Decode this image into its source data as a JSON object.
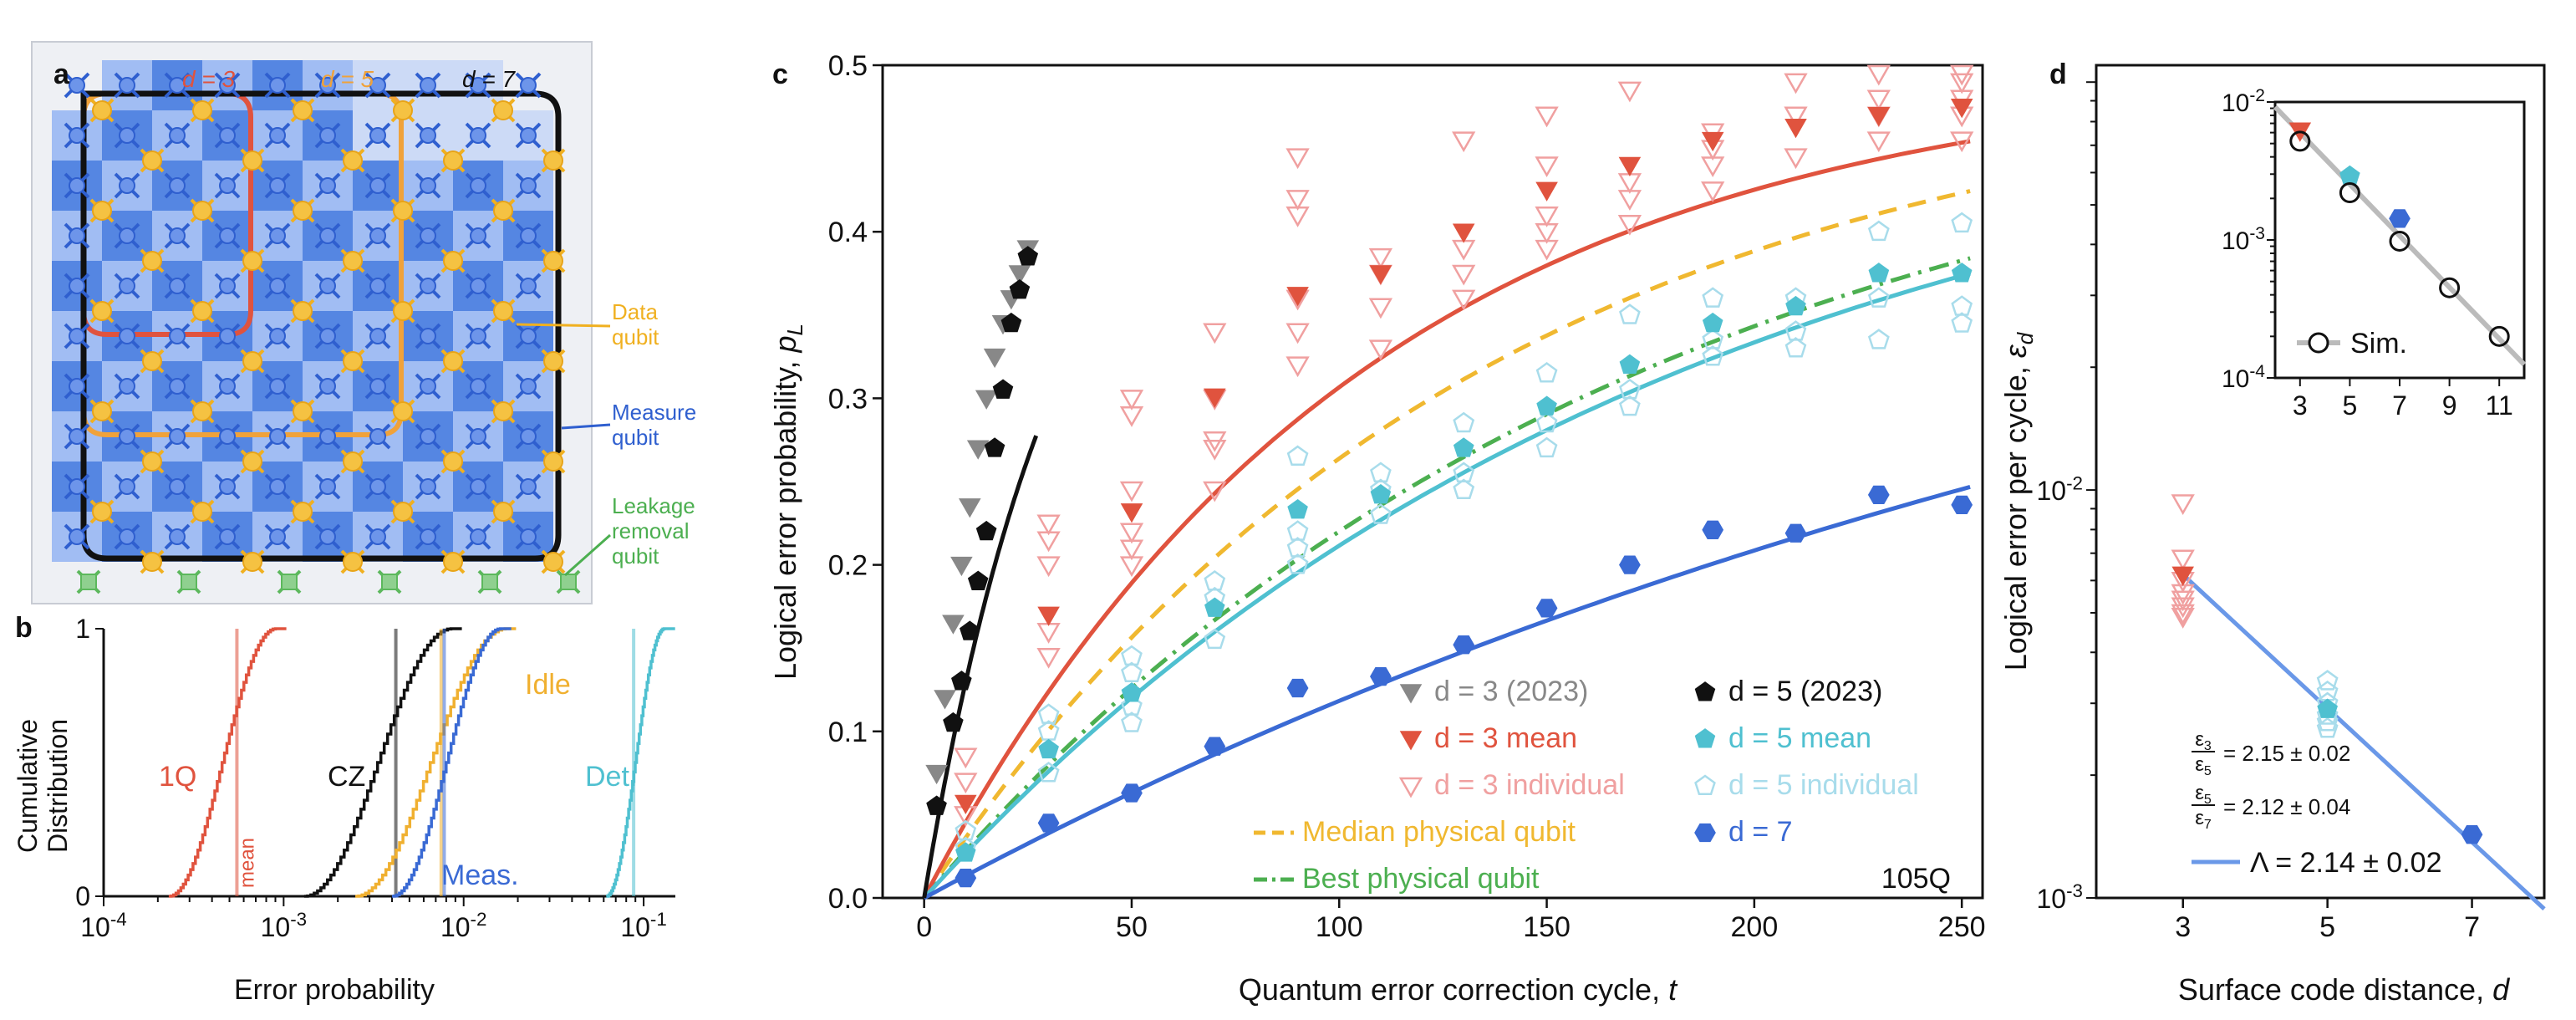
{
  "panel_labels": {
    "a": "a",
    "b": "b",
    "c": "c",
    "d": "d"
  },
  "panel_a": {
    "distance_labels": [
      {
        "text": "d = 3",
        "color": "#e0533e"
      },
      {
        "text": "d = 5",
        "color": "#f0a23a"
      },
      {
        "text": "d = 7",
        "color": "#111111"
      }
    ],
    "legend": [
      {
        "line1": "Data",
        "line2": "qubit",
        "line3": "",
        "color": "#f0b020"
      },
      {
        "line1": "Measure",
        "line2": "qubit",
        "line3": "",
        "color": "#2f5fcf"
      },
      {
        "line1": "Leakage",
        "line2": "removal",
        "line3": "qubit",
        "color": "#4caf50"
      }
    ],
    "colors": {
      "data": "#f5c242",
      "measure": "#2f5fcf",
      "leakage": "#5cb85c"
    }
  },
  "chart_data": [
    {
      "panel": "b",
      "type": "line",
      "xlabel": "Error probability",
      "ylabel_line1": "Cumulative",
      "ylabel_line2": "Distribution",
      "x_scale": "log",
      "xlim": [
        0.0001,
        0.15
      ],
      "ylim": [
        0,
        1
      ],
      "x_ticks": [
        "10^-4",
        "10^-3",
        "10^-2",
        "10^-1"
      ],
      "y_ticks": [
        "0",
        "1"
      ],
      "series": [
        {
          "name": "1Q",
          "color": "#e0533e",
          "from": 0.00023,
          "to": 0.0009,
          "mean": 0.00055,
          "label_text": "1Q"
        },
        {
          "name": "CZ",
          "color": "#111111",
          "from": 0.0013,
          "to": 0.0085,
          "mean": 0.0042,
          "label_text": "CZ"
        },
        {
          "name": "Idle",
          "color": "#f0b030",
          "from": 0.0025,
          "to": 0.017,
          "mean": 0.0075,
          "label_text": "Idle"
        },
        {
          "name": "Meas.",
          "color": "#3a6ad4",
          "from": 0.004,
          "to": 0.016,
          "mean": 0.0078,
          "label_text": "Meas."
        },
        {
          "name": "Det.",
          "color": "#4fc0d0",
          "from": 0.062,
          "to": 0.13,
          "mean": 0.088,
          "label_text": "Det."
        }
      ],
      "mean_label": "mean"
    },
    {
      "panel": "c",
      "type": "scatter",
      "xlabel_text": "Quantum error correction cycle, ",
      "xlabel_var": "t",
      "ylabel_text": "Logical error probability, ",
      "ylabel_var": "p",
      "ylabel_sub": "L",
      "xlim": [
        -10,
        255
      ],
      "ylim": [
        0,
        0.5
      ],
      "x_ticks": [
        0,
        50,
        100,
        150,
        200,
        250
      ],
      "y_ticks": [
        0.0,
        0.1,
        0.2,
        0.3,
        0.4,
        0.5
      ],
      "annotation": "105Q",
      "series": [
        {
          "name": "d = 3 (2023)",
          "color": "#888888",
          "marker": "tri-down",
          "x": [
            3,
            5,
            7,
            9,
            11,
            13,
            15,
            17,
            19,
            21,
            23,
            25
          ],
          "y": [
            0.075,
            0.12,
            0.165,
            0.2,
            0.235,
            0.27,
            0.3,
            0.325,
            0.345,
            0.36,
            0.375,
            0.39
          ]
        },
        {
          "name": "d = 5 (2023)",
          "color": "#111111",
          "marker": "pentagon",
          "x": [
            3,
            7,
            9,
            11,
            13,
            15,
            17,
            19,
            21,
            23,
            25
          ],
          "y": [
            0.055,
            0.105,
            0.13,
            0.16,
            0.19,
            0.22,
            0.27,
            0.305,
            0.345,
            0.365,
            0.385
          ]
        },
        {
          "name": "d = 3 mean",
          "color": "#e0533e",
          "marker": "tri-down",
          "x": [
            10,
            30,
            50,
            70,
            90,
            110,
            130,
            150,
            170,
            190,
            210,
            230,
            250
          ],
          "y": [
            0.057,
            0.17,
            0.232,
            0.301,
            0.362,
            0.375,
            0.4,
            0.425,
            0.44,
            0.455,
            0.463,
            0.47,
            0.475
          ]
        },
        {
          "name": "d = 3 individual",
          "color": "#f0a0a0",
          "marker": "tri-down-open",
          "x": [
            10,
            10,
            10,
            30,
            30,
            30,
            30,
            30,
            50,
            50,
            50,
            50,
            50,
            50,
            70,
            70,
            70,
            70,
            70,
            90,
            90,
            90,
            90,
            90,
            90,
            110,
            110,
            110,
            110,
            130,
            130,
            130,
            130,
            150,
            150,
            150,
            150,
            150,
            170,
            170,
            170,
            170,
            190,
            190,
            190,
            190,
            210,
            210,
            210,
            230,
            230,
            230,
            230,
            250,
            250,
            250,
            250,
            250
          ],
          "y": [
            0.05,
            0.07,
            0.085,
            0.145,
            0.16,
            0.2,
            0.215,
            0.225,
            0.2,
            0.21,
            0.22,
            0.245,
            0.29,
            0.3,
            0.245,
            0.27,
            0.275,
            0.3,
            0.34,
            0.32,
            0.34,
            0.36,
            0.41,
            0.42,
            0.445,
            0.33,
            0.355,
            0.375,
            0.385,
            0.36,
            0.375,
            0.39,
            0.455,
            0.39,
            0.4,
            0.41,
            0.44,
            0.47,
            0.405,
            0.42,
            0.43,
            0.485,
            0.425,
            0.44,
            0.45,
            0.46,
            0.445,
            0.47,
            0.49,
            0.455,
            0.47,
            0.48,
            0.495,
            0.455,
            0.47,
            0.48,
            0.49,
            0.495
          ]
        },
        {
          "name": "d = 5 mean",
          "color": "#4fc0d0",
          "marker": "pentagon",
          "x": [
            10,
            30,
            50,
            70,
            90,
            110,
            130,
            150,
            170,
            190,
            210,
            230,
            250
          ],
          "y": [
            0.027,
            0.089,
            0.123,
            0.174,
            0.233,
            0.242,
            0.27,
            0.295,
            0.32,
            0.345,
            0.355,
            0.375,
            0.375
          ]
        },
        {
          "name": "d = 5 individual",
          "color": "#a8dceb",
          "marker": "pentagon-open",
          "x": [
            10,
            10,
            30,
            30,
            30,
            50,
            50,
            50,
            50,
            70,
            70,
            70,
            90,
            90,
            90,
            90,
            110,
            110,
            110,
            130,
            130,
            130,
            150,
            150,
            150,
            170,
            170,
            170,
            190,
            190,
            190,
            210,
            210,
            210,
            230,
            230,
            230,
            250,
            250,
            250
          ],
          "y": [
            0.03,
            0.04,
            0.075,
            0.1,
            0.11,
            0.105,
            0.115,
            0.135,
            0.145,
            0.155,
            0.18,
            0.19,
            0.2,
            0.21,
            0.22,
            0.265,
            0.23,
            0.245,
            0.255,
            0.245,
            0.255,
            0.285,
            0.27,
            0.285,
            0.315,
            0.295,
            0.305,
            0.35,
            0.325,
            0.335,
            0.36,
            0.33,
            0.34,
            0.36,
            0.335,
            0.36,
            0.4,
            0.345,
            0.355,
            0.405
          ]
        },
        {
          "name": "d = 7",
          "color": "#3a6ad4",
          "marker": "hexagon",
          "x": [
            10,
            30,
            50,
            70,
            90,
            110,
            130,
            150,
            170,
            190,
            210,
            230,
            250
          ],
          "y": [
            0.012,
            0.045,
            0.063,
            0.091,
            0.126,
            0.133,
            0.152,
            0.174,
            0.2,
            0.221,
            0.219,
            0.242,
            0.236
          ]
        },
        {
          "name": "Median physical qubit",
          "color": "#f0b830",
          "marker": "dashed",
          "x": [],
          "y": []
        },
        {
          "name": "Best physical qubit",
          "color": "#4caf50",
          "marker": "dashdot",
          "x": [],
          "y": []
        }
      ],
      "legend": [
        {
          "label": "d = 3 (2023)",
          "color": "#888888"
        },
        {
          "label": "d = 5 (2023)",
          "color": "#111111"
        },
        {
          "label": "d = 3 mean",
          "color": "#e0533e"
        },
        {
          "label": "d = 5 mean",
          "color": "#4fc0d0"
        },
        {
          "label": "d = 3 individual",
          "color": "#f0a0a0"
        },
        {
          "label": "d = 5 individual",
          "color": "#a8dceb"
        },
        {
          "label": "Median physical qubit",
          "color": "#f0b830"
        },
        {
          "label": "Best physical qubit",
          "color": "#4caf50"
        },
        {
          "label": "d = 7",
          "color": "#3a6ad4"
        }
      ],
      "fits": {
        "d3": {
          "plateau": 0.5,
          "rate": 0.0095,
          "offset": 0.0
        },
        "median": {
          "plateau": 0.5,
          "rate": 0.0075,
          "offset": 0.0
        },
        "best": {
          "plateau": 0.5,
          "rate": 0.0058,
          "offset": 0.0
        },
        "d5": {
          "plateau": 0.5,
          "rate": 0.0055,
          "offset": 0.0
        },
        "d7": {
          "plateau": 0.5,
          "rate": 0.0027,
          "offset": 0.0
        },
        "d5_2023": {
          "plateau": 0.5,
          "rate": 0.03,
          "offset": 0.0
        }
      }
    },
    {
      "panel": "d",
      "type": "scatter",
      "xlabel_text": "Surface code distance, ",
      "xlabel_var": "d",
      "ylabel_text": "Logical error per cycle, ",
      "ylabel_var": "ε",
      "ylabel_sub": "d",
      "y_scale": "log",
      "xlim": [
        1.8,
        8.0
      ],
      "ylim": [
        0.001,
        0.11
      ],
      "x_ticks": [
        3,
        5,
        7
      ],
      "y_ticks": [
        "10^-3",
        "10^-2"
      ],
      "series": [
        {
          "name": "d = 3 mean",
          "color": "#e0533e",
          "marker": "tri-down",
          "x": [
            3
          ],
          "y": [
            0.0062
          ]
        },
        {
          "name": "d = 3 individual",
          "color": "#f0a0a0",
          "marker": "tri-down-open",
          "x": [
            3,
            3,
            3,
            3,
            3,
            3,
            3,
            3
          ],
          "y": [
            0.0093,
            0.0068,
            0.006,
            0.0056,
            0.0054,
            0.0052,
            0.005,
            0.0049
          ]
        },
        {
          "name": "d = 5 mean",
          "color": "#4fc0d0",
          "marker": "pentagon",
          "x": [
            5
          ],
          "y": [
            0.0029
          ]
        },
        {
          "name": "d = 5 individual",
          "color": "#a8dceb",
          "marker": "pentagon-open",
          "x": [
            5,
            5,
            5,
            5,
            5,
            5
          ],
          "y": [
            0.0034,
            0.0032,
            0.003,
            0.0028,
            0.0027,
            0.0026
          ]
        },
        {
          "name": "d = 7",
          "color": "#3a6ad4",
          "marker": "hexagon",
          "x": [
            7
          ],
          "y": [
            0.00143
          ]
        }
      ],
      "fit_line": {
        "color": "#6a98e8",
        "x": [
          3,
          8
        ],
        "y": [
          0.0062,
          0.00094
        ]
      },
      "ratios": [
        {
          "num": "ε",
          "num_sub": "3",
          "den": "ε",
          "den_sub": "5",
          "value": "= 2.15 ± 0.02"
        },
        {
          "num": "ε",
          "num_sub": "5",
          "den": "ε",
          "den_sub": "7",
          "value": "= 2.12 ± 0.04"
        }
      ],
      "lambda_text": "Λ = 2.14 ± 0.02",
      "inset": {
        "type": "scatter",
        "y_scale": "log",
        "xlim": [
          2,
          12
        ],
        "ylim": [
          0.0001,
          0.01
        ],
        "x_ticks": [
          3,
          5,
          7,
          9,
          11
        ],
        "y_ticks": [
          "10^-4",
          "10^-3",
          "10^-2"
        ],
        "sim": {
          "name": "Sim.",
          "x": [
            3,
            5,
            7,
            9,
            11
          ],
          "y": [
            0.0052,
            0.0022,
            0.00098,
            0.00045,
            0.0002
          ]
        },
        "sim_line": {
          "x": [
            2,
            12
          ],
          "y": [
            0.0092,
            0.000125
          ]
        },
        "exp": [
          {
            "x": 3,
            "y": 0.0062,
            "color": "#e0533e",
            "marker": "tri-down"
          },
          {
            "x": 5,
            "y": 0.0029,
            "color": "#4fc0d0",
            "marker": "pentagon"
          },
          {
            "x": 7,
            "y": 0.00143,
            "color": "#3a6ad4",
            "marker": "hexagon"
          }
        ],
        "legend_label": "Sim."
      }
    }
  ]
}
